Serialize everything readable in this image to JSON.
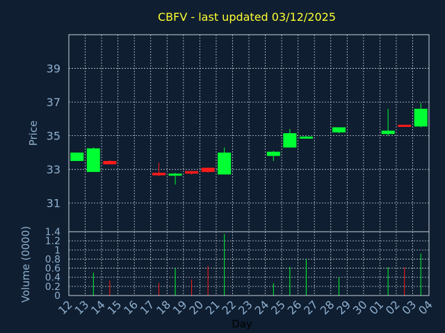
{
  "chart_data": {
    "type": "candlestick",
    "title": "CBFV - last updated 03/12/2025",
    "price_panel": {
      "ylabel": "Price",
      "ylim": [
        29.3,
        41.0
      ],
      "yticks": [
        31,
        33,
        35,
        37,
        39
      ],
      "grid": true
    },
    "volume_panel": {
      "ylabel": "Volume (0000)",
      "ylim": [
        0,
        1.4
      ],
      "yticks": [
        "0",
        "0.2",
        "0.4",
        "0.6",
        "0.8",
        "1",
        "1.2",
        "1.4"
      ],
      "grid": true
    },
    "xlabel": "Day",
    "x_ticks": [
      "12",
      "13",
      "14",
      "15",
      "16",
      "17",
      "18",
      "19",
      "20",
      "21",
      "22",
      "23",
      "24",
      "25",
      "26",
      "27",
      "28",
      "29",
      "30",
      "01",
      "02",
      "03",
      "04"
    ],
    "colors": {
      "up": "#00ff33",
      "down": "#ff1a1a",
      "background": "#0f1e30",
      "title": "#ffff33",
      "axis_text": "#8fb0d0"
    },
    "candles": [
      {
        "day": "12",
        "open": 33.5,
        "high": 34.0,
        "low": 33.5,
        "close": 34.0,
        "volume": 0
      },
      {
        "day": "13",
        "open": 32.85,
        "high": 34.3,
        "low": 32.85,
        "close": 34.25,
        "volume": 0.5
      },
      {
        "day": "14",
        "open": 33.5,
        "high": 33.55,
        "low": 33.3,
        "close": 33.3,
        "volume": 0.33
      },
      {
        "day": "17",
        "open": 32.8,
        "high": 33.4,
        "low": 32.6,
        "close": 32.65,
        "volume": 0.28
      },
      {
        "day": "18",
        "open": 32.7,
        "high": 32.8,
        "low": 32.1,
        "close": 32.75,
        "volume": 0.6
      },
      {
        "day": "19",
        "open": 32.9,
        "high": 32.9,
        "low": 32.7,
        "close": 32.75,
        "volume": 0.35
      },
      {
        "day": "20",
        "open": 33.1,
        "high": 33.1,
        "low": 32.8,
        "close": 32.85,
        "volume": 0.65
      },
      {
        "day": "21",
        "open": 32.7,
        "high": 34.3,
        "low": 32.7,
        "close": 34.0,
        "volume": 1.35
      },
      {
        "day": "24",
        "open": 33.8,
        "high": 34.1,
        "low": 33.5,
        "close": 34.05,
        "volume": 0.27
      },
      {
        "day": "25",
        "open": 34.3,
        "high": 35.4,
        "low": 34.3,
        "close": 35.15,
        "volume": 0.63
      },
      {
        "day": "26",
        "open": 34.85,
        "high": 35.0,
        "low": 34.85,
        "close": 34.95,
        "volume": 0.8
      },
      {
        "day": "28",
        "open": 35.2,
        "high": 35.5,
        "low": 35.15,
        "close": 35.5,
        "volume": 0.4
      },
      {
        "day": "01",
        "open": 35.1,
        "high": 36.6,
        "low": 35.0,
        "close": 35.3,
        "volume": 0.62
      },
      {
        "day": "02",
        "open": 35.65,
        "high": 35.65,
        "low": 35.6,
        "close": 35.6,
        "volume": 0.62
      },
      {
        "day": "03",
        "open": 35.55,
        "high": 36.95,
        "low": 35.5,
        "close": 36.6,
        "volume": 0.92
      }
    ]
  }
}
